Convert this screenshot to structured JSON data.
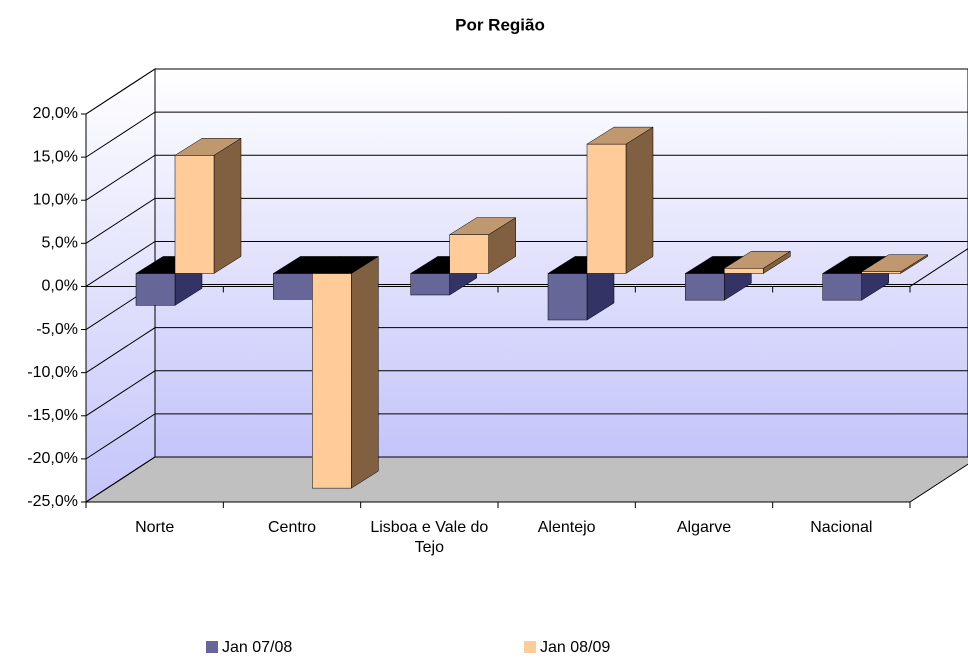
{
  "chart_data": {
    "type": "bar3d",
    "title": "Por Região",
    "categories": [
      "Norte",
      "Centro",
      "Lisboa e Vale do Tejo",
      "Alentejo",
      "Algarve",
      "Nacional"
    ],
    "series": [
      {
        "name": "Jan 07/08",
        "color": "#666699",
        "values": [
          -3.7,
          -3.0,
          -2.5,
          -5.4,
          -3.1,
          -3.1
        ]
      },
      {
        "name": "Jan 08/09",
        "color": "#ffcc99",
        "values": [
          13.7,
          -24.9,
          4.5,
          15.0,
          0.6,
          0.2
        ]
      }
    ],
    "ylim": [
      -25,
      20
    ],
    "yticks": [
      {
        "value": -25,
        "label": "-25,0%"
      },
      {
        "value": -20,
        "label": "-20,0%"
      },
      {
        "value": -15,
        "label": "-15,0%"
      },
      {
        "value": -10,
        "label": "-10,0%"
      },
      {
        "value": -5,
        "label": "-5,0%"
      },
      {
        "value": 0,
        "label": "0,0%"
      },
      {
        "value": 5,
        "label": "5,0%"
      },
      {
        "value": 10,
        "label": "10,0%"
      },
      {
        "value": 15,
        "label": "15,0%"
      },
      {
        "value": 20,
        "label": "20,0%"
      }
    ],
    "grid": true,
    "legend": "bottom"
  }
}
